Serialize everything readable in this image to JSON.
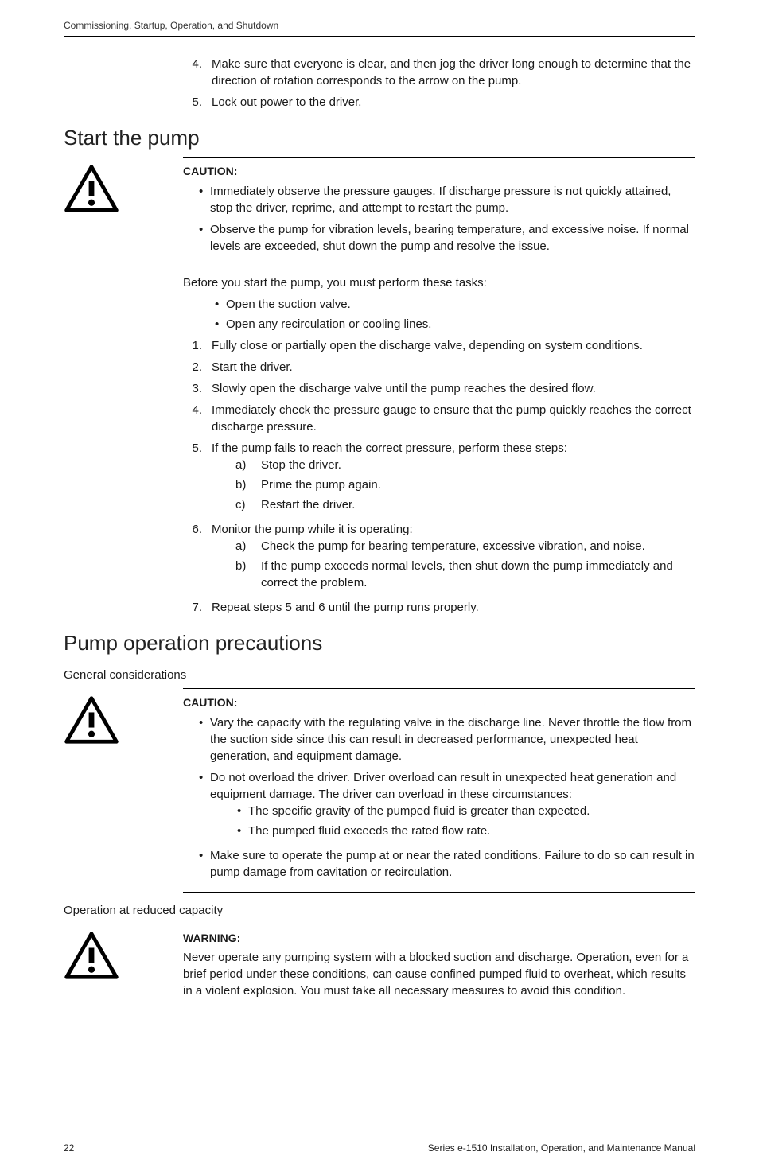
{
  "header": {
    "text": "Commissioning, Startup, Operation, and Shutdown"
  },
  "topSteps": [
    {
      "n": "4.",
      "t": "Make sure that everyone is clear, and then jog the driver long enough to determine that the direction of rotation corresponds to the arrow on the pump."
    },
    {
      "n": "5.",
      "t": "Lock out power to the driver."
    }
  ],
  "section1": {
    "title": "Start the pump",
    "caution": {
      "label": "CAUTION:",
      "bullets": [
        "Immediately observe the pressure gauges. If discharge pressure is not quickly attained, stop the driver, reprime, and attempt to restart the pump.",
        "Observe the pump for vibration levels, bearing temperature, and excessive noise. If normal levels are exceeded, shut down the pump and resolve the issue."
      ]
    },
    "beforeText": "Before you start the pump, you must perform these tasks:",
    "beforeBullets": [
      "Open the suction valve.",
      "Open any recirculation or cooling lines."
    ],
    "steps": [
      {
        "n": "1.",
        "t": "Fully close or partially open the discharge valve, depending on system conditions."
      },
      {
        "n": "2.",
        "t": "Start the driver."
      },
      {
        "n": "3.",
        "t": "Slowly open the discharge valve until the pump reaches the desired flow."
      },
      {
        "n": "4.",
        "t": "Immediately check the pressure gauge to ensure that the pump quickly reaches the correct discharge pressure."
      },
      {
        "n": "5.",
        "t": "If the pump fails to reach the correct pressure, perform these steps:",
        "sub": [
          {
            "n": "a)",
            "t": "Stop the driver."
          },
          {
            "n": "b)",
            "t": "Prime the pump again."
          },
          {
            "n": "c)",
            "t": "Restart the driver."
          }
        ]
      },
      {
        "n": "6.",
        "t": "Monitor the pump while it is operating:",
        "sub": [
          {
            "n": "a)",
            "t": "Check the pump for bearing temperature, excessive vibration, and noise."
          },
          {
            "n": "b)",
            "t": "If the pump exceeds normal levels, then shut down the pump immediately and correct the problem."
          }
        ]
      },
      {
        "n": "7.",
        "t": "Repeat steps 5 and 6 until the pump runs properly."
      }
    ]
  },
  "section2": {
    "title": "Pump operation precautions",
    "sub1": "General considerations",
    "caution1": {
      "label": "CAUTION:",
      "bullets": [
        {
          "t": "Vary the capacity with the regulating valve in the discharge line. Never throttle the flow from the suction side since this can result in decreased performance, unexpected heat generation, and equipment damage."
        },
        {
          "t": "Do not overload the driver. Driver overload can result in unexpected heat generation and equipment damage. The driver can overload in these circumstances:",
          "sub": [
            "The specific gravity of the pumped fluid is greater than expected.",
            "The pumped fluid exceeds the rated flow rate."
          ]
        },
        {
          "t": "Make sure to operate the pump at or near the rated conditions. Failure to do so can result in pump damage from cavitation or recirculation."
        }
      ]
    },
    "sub2": "Operation at reduced capacity",
    "warning": {
      "label": "WARNING:",
      "text": "Never operate any pumping system with a blocked suction and discharge. Operation, even for a brief period under these conditions, can cause confined pumped fluid to overheat, which results in a violent explosion. You must take all necessary measures to avoid this condition."
    }
  },
  "footer": {
    "page": "22",
    "doc": "Series e-1510 Installation, Operation, and Maintenance Manual"
  }
}
